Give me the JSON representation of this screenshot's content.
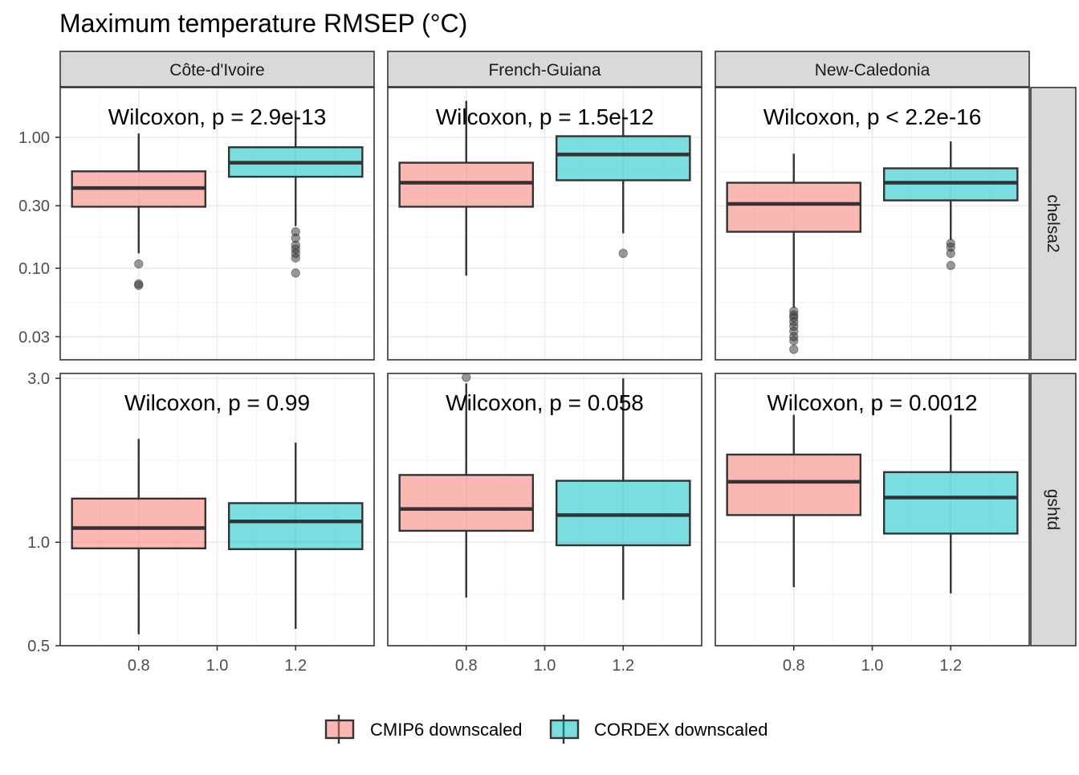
{
  "colors": {
    "cmip6": "#F8766D",
    "cordex": "#00BFC4",
    "strip_bg": "#D9D9D9",
    "panel_border": "#333333",
    "grid_major": "#EBEBEB",
    "grid_minor": "#F5F5F5",
    "tick_text": "#4D4D4D"
  },
  "chart_data": {
    "type": "box",
    "title": "Maximum temperature RMSEP (°C)",
    "columns": [
      "Côte-d'Ivoire",
      "French-Guiana",
      "New-Caledonia"
    ],
    "rows": [
      "chelsa2",
      "gshtd"
    ],
    "x_ticks": [
      "0.8",
      "1.0",
      "1.2"
    ],
    "x_tick_values": [
      0.8,
      1.0,
      1.2
    ],
    "xlim": [
      0.6,
      1.4
    ],
    "legend": {
      "position": "bottom",
      "items": [
        "CMIP6 downscaled",
        "CORDEX downscaled"
      ]
    },
    "row_scales": {
      "chelsa2": {
        "log": true,
        "ylim": [
          0.02,
          2.4
        ],
        "ticks": [
          0.03,
          0.1,
          0.3,
          1.0
        ],
        "tick_labels": [
          "0.03",
          "0.10",
          "0.30",
          "1.00"
        ]
      },
      "gshtd": {
        "log": true,
        "ylim": [
          0.5,
          3.1
        ],
        "ticks": [
          0.5,
          1.0,
          3.0
        ],
        "tick_labels": [
          "0.5",
          "1.0",
          "3.0"
        ]
      }
    },
    "panels": [
      {
        "row": "chelsa2",
        "column": "Côte-d'Ivoire",
        "annotation": "Wilcoxon, p = 2.9e-13",
        "boxes": [
          {
            "series": "CMIP6 downscaled",
            "x": 0.8,
            "min": 0.13,
            "q1": 0.295,
            "median": 0.41,
            "q3": 0.55,
            "max": 1.07,
            "outliers": [
              0.108,
              0.076,
              0.074
            ]
          },
          {
            "series": "CORDEX downscaled",
            "x": 1.2,
            "min": 0.21,
            "q1": 0.5,
            "median": 0.64,
            "q3": 0.84,
            "max": 1.6,
            "outliers": [
              0.19,
              0.17,
              0.15,
              0.14,
              0.13,
              0.12,
              0.092
            ]
          }
        ]
      },
      {
        "row": "chelsa2",
        "column": "French-Guiana",
        "annotation": "Wilcoxon, p = 1.5e-12",
        "boxes": [
          {
            "series": "CMIP6 downscaled",
            "x": 0.8,
            "min": 0.088,
            "q1": 0.295,
            "median": 0.45,
            "q3": 0.64,
            "max": 1.9,
            "outliers": []
          },
          {
            "series": "CORDEX downscaled",
            "x": 1.2,
            "min": 0.185,
            "q1": 0.47,
            "median": 0.74,
            "q3": 1.02,
            "max": 1.65,
            "outliers": [
              0.13
            ]
          }
        ]
      },
      {
        "row": "chelsa2",
        "column": "New-Caledonia",
        "annotation": "Wilcoxon, p < 2.2e-16",
        "boxes": [
          {
            "series": "CMIP6 downscaled",
            "x": 0.8,
            "min": 0.05,
            "q1": 0.19,
            "median": 0.31,
            "q3": 0.45,
            "max": 0.75,
            "outliers": [
              0.047,
              0.044,
              0.042,
              0.039,
              0.036,
              0.033,
              0.03,
              0.028,
              0.024
            ]
          },
          {
            "series": "CORDEX downscaled",
            "x": 1.2,
            "min": 0.165,
            "q1": 0.33,
            "median": 0.45,
            "q3": 0.58,
            "max": 0.93,
            "outliers": [
              0.155,
              0.145,
              0.13,
              0.105
            ]
          }
        ]
      },
      {
        "row": "gshtd",
        "column": "Côte-d'Ivoire",
        "annotation": "Wilcoxon, p = 0.99",
        "boxes": [
          {
            "series": "CMIP6 downscaled",
            "x": 0.8,
            "min": 0.54,
            "q1": 0.96,
            "median": 1.1,
            "q3": 1.34,
            "max": 2.0,
            "outliers": []
          },
          {
            "series": "CORDEX downscaled",
            "x": 1.2,
            "min": 0.56,
            "q1": 0.955,
            "median": 1.15,
            "q3": 1.3,
            "max": 1.95,
            "outliers": []
          }
        ]
      },
      {
        "row": "gshtd",
        "column": "French-Guiana",
        "annotation": "Wilcoxon, p = 0.058",
        "boxes": [
          {
            "series": "CMIP6 downscaled",
            "x": 0.8,
            "min": 0.69,
            "q1": 1.08,
            "median": 1.25,
            "q3": 1.57,
            "max": 2.9,
            "outliers": [
              3.02
            ]
          },
          {
            "series": "CORDEX downscaled",
            "x": 1.2,
            "min": 0.68,
            "q1": 0.98,
            "median": 1.2,
            "q3": 1.51,
            "max": 3.0,
            "outliers": []
          }
        ]
      },
      {
        "row": "gshtd",
        "column": "New-Caledonia",
        "annotation": "Wilcoxon, p = 0.0012",
        "boxes": [
          {
            "series": "CMIP6 downscaled",
            "x": 0.8,
            "min": 0.74,
            "q1": 1.2,
            "median": 1.5,
            "q3": 1.8,
            "max": 2.35,
            "outliers": []
          },
          {
            "series": "CORDEX downscaled",
            "x": 1.2,
            "min": 0.71,
            "q1": 1.06,
            "median": 1.35,
            "q3": 1.6,
            "max": 2.35,
            "outliers": []
          }
        ]
      }
    ]
  }
}
